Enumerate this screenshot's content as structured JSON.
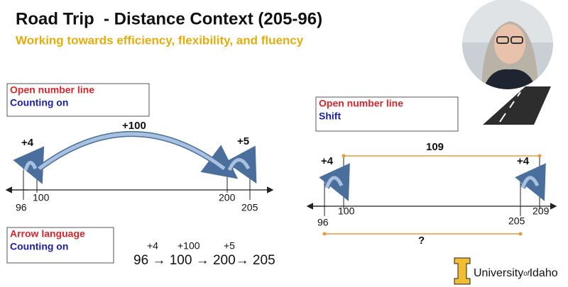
{
  "header": {
    "title": "Road Trip  - Distance Context (205-96)",
    "subtitle": "Working towards efficiency, flexibility, and fluency"
  },
  "left_diagram": {
    "box": {
      "heading": "Open number line",
      "strategy": "Counting on"
    },
    "jumps": [
      "+4",
      "+100",
      "+5"
    ],
    "points": [
      "96",
      "100",
      "200",
      "205"
    ]
  },
  "right_diagram": {
    "box": {
      "heading": "Open number line",
      "strategy": "Shift"
    },
    "top_distance": "109",
    "jumps": [
      "+4",
      "+4"
    ],
    "points": [
      "96",
      "100",
      "205",
      "209"
    ],
    "bottom_distance": "?"
  },
  "arrow_language": {
    "box": {
      "heading": "Arrow language",
      "strategy": "Counting on"
    },
    "jumps": [
      "+4",
      "+100",
      "+5"
    ],
    "equation": "96 → 100 → 200→ 205"
  },
  "logo": {
    "university": "University",
    "of": "of",
    "idaho": "Idaho"
  }
}
